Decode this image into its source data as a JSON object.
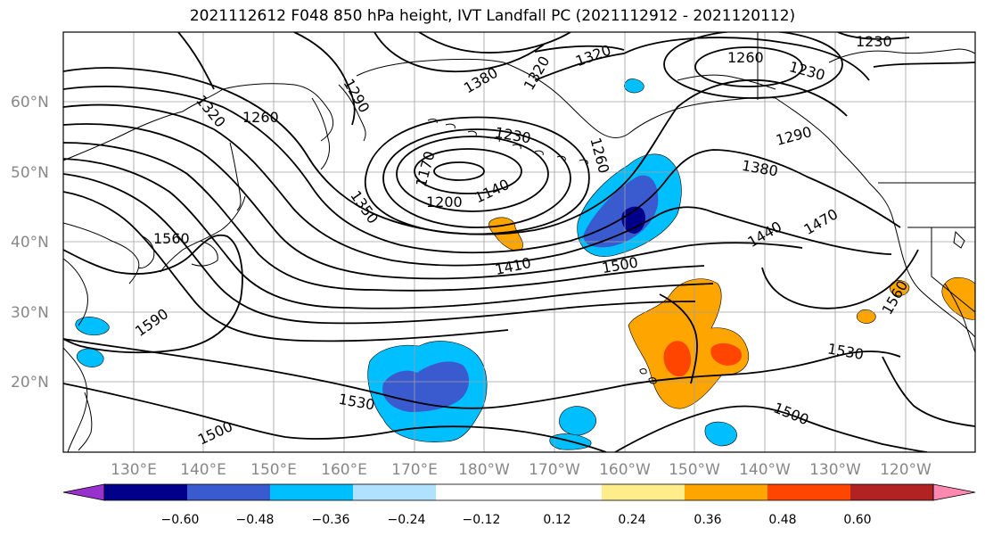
{
  "title": "2021112612 F048 850 hPa height, IVT Landfall PC (2021112912 - 2021120112)",
  "lat_labels": [
    "60°N",
    "50°N",
    "40°N",
    "30°N",
    "20°N"
  ],
  "lon_labels": [
    "130°E",
    "140°E",
    "150°E",
    "160°E",
    "170°E",
    "180°W",
    "170°W",
    "160°W",
    "150°W",
    "140°W",
    "130°W",
    "120°W"
  ],
  "contour_labels": [
    "1320",
    "1380",
    "1320",
    "1230",
    "1260",
    "1230",
    "1320",
    "1290",
    "1260",
    "1290",
    "1230",
    "1170",
    "1260",
    "1200",
    "1140",
    "1380",
    "1350",
    "1560",
    "1410",
    "1500",
    "1440",
    "1470",
    "1590",
    "1560",
    "1530",
    "1530",
    "1500",
    "1500"
  ],
  "colorbar": {
    "ticks": [
      "−0.60",
      "−0.48",
      "−0.36",
      "−0.24",
      "−0.12",
      "0.12",
      "0.24",
      "0.36",
      "0.48",
      "0.60"
    ],
    "colors": [
      "#9932cc",
      "#00008b",
      "#3a5bcf",
      "#00bfff",
      "#b0e2ff",
      "#ffffff",
      "#ffffff",
      "#ffec8b",
      "#ffa500",
      "#ff4500",
      "#b22222",
      "#ff88b0"
    ]
  }
}
